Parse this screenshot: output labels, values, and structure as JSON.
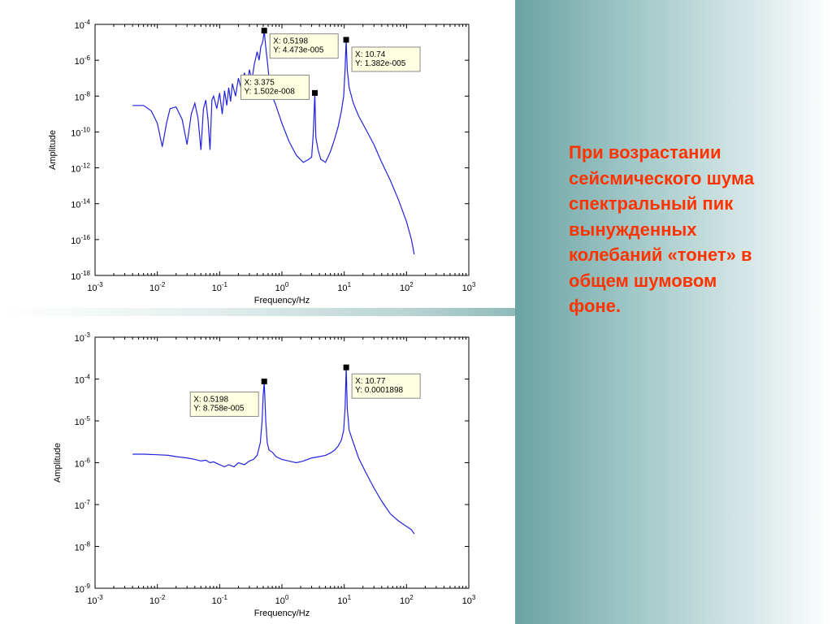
{
  "slide_text": [
    "При возрастании",
    "сейсмического шума",
    "спектральный пик",
    "вынужденных",
    "колебаний «тонет» в",
    "общем шумовом",
    "фоне."
  ],
  "colors": {
    "series": "#2222dd",
    "slide_text": "#ff3300",
    "panel": "#6aa3a3"
  },
  "chart_data": [
    {
      "type": "line",
      "xscale": "log",
      "yscale": "log",
      "xlim": [
        0.001,
        1000
      ],
      "ylim": [
        1e-18,
        0.0001
      ],
      "xlabel": "Frequency/Hz",
      "ylabel": "Amplitude",
      "x_ticks": [
        -3,
        -2,
        -1,
        0,
        1,
        2,
        3
      ],
      "y_ticks": [
        -4,
        -6,
        -8,
        -10,
        -12,
        -14,
        -16,
        -18
      ],
      "series": [
        {
          "x": [
            0.004,
            0.006,
            0.008,
            0.01,
            0.012,
            0.014,
            0.016,
            0.02,
            0.025,
            0.03,
            0.035,
            0.04,
            0.045,
            0.05,
            0.055,
            0.06,
            0.065,
            0.07,
            0.075,
            0.08,
            0.09,
            0.1,
            0.11,
            0.12,
            0.13,
            0.14,
            0.15,
            0.16,
            0.18,
            0.2,
            0.22,
            0.25,
            0.28,
            0.3,
            0.33,
            0.36,
            0.4,
            0.43,
            0.46,
            0.48,
            0.5,
            0.5198,
            0.54,
            0.56,
            0.58,
            0.62,
            0.7,
            0.8,
            1.0,
            1.3,
            1.7,
            2.2,
            2.7,
            3.0,
            3.2,
            3.375,
            3.5,
            3.8,
            4.2,
            5.0,
            6.0,
            7.0,
            8.0,
            9.0,
            9.8,
            10.3,
            10.74,
            11.2,
            12.0,
            14.0,
            17.0,
            22.0,
            30.0,
            40.0,
            55.0,
            75.0,
            100.0,
            120.0,
            133.0
          ],
          "y": [
            3e-09,
            3e-09,
            1.5e-09,
            3e-10,
            1.5e-11,
            3e-10,
            2e-09,
            2.5e-09,
            5e-10,
            2e-11,
            1e-09,
            4e-09,
            6e-10,
            1e-11,
            2e-09,
            6e-09,
            5e-10,
            1e-11,
            6e-09,
            1e-08,
            2e-09,
            1.5e-08,
            1e-09,
            2e-08,
            3e-09,
            3e-08,
            5e-09,
            5e-08,
            1e-08,
            1e-07,
            3e-08,
            2e-07,
            5e-08,
            3e-07,
            8e-08,
            6e-07,
            3e-06,
            1e-06,
            6e-06,
            8e-06,
            1.5e-05,
            4.473e-05,
            1e-05,
            3e-06,
            1e-06,
            1e-07,
            1e-08,
            3e-09,
            3e-10,
            3e-11,
            5e-12,
            2e-12,
            3e-12,
            4e-12,
            1e-10,
            1.502e-08,
            5e-11,
            1e-11,
            3e-12,
            2e-12,
            8e-12,
            4e-11,
            2e-10,
            1.5e-09,
            1e-08,
            3e-07,
            1.382e-05,
            3e-07,
            3e-08,
            4e-09,
            8e-10,
            1.5e-10,
            2e-11,
            2e-12,
            2e-13,
            1.5e-14,
            1e-15,
            1e-16,
            1.5e-17
          ]
        }
      ],
      "data_tips": [
        {
          "x": 0.5198,
          "y": 4.473e-05,
          "lines": [
            "X: 0.5198",
            "Y: 4.473e-005"
          ],
          "side": "right",
          "dy": 0
        },
        {
          "x": 3.375,
          "y": 1.502e-08,
          "lines": [
            "X: 3.375",
            "Y: 1.502e-008"
          ],
          "side": "left",
          "dy": -26
        },
        {
          "x": 10.74,
          "y": 1.382e-05,
          "lines": [
            "X: 10.74",
            "Y: 1.382e-005"
          ],
          "side": "right",
          "dy": 5
        }
      ]
    },
    {
      "type": "line",
      "xscale": "log",
      "yscale": "log",
      "xlim": [
        0.001,
        1000
      ],
      "ylim": [
        1e-09,
        0.001
      ],
      "xlabel": "Frequency/Hz",
      "ylabel": "Amplitude",
      "x_ticks": [
        -3,
        -2,
        -1,
        0,
        1,
        2,
        3
      ],
      "y_ticks": [
        -3,
        -4,
        -5,
        -6,
        -7,
        -8,
        -9
      ],
      "series": [
        {
          "x": [
            0.004,
            0.006,
            0.01,
            0.015,
            0.02,
            0.03,
            0.04,
            0.05,
            0.06,
            0.07,
            0.08,
            0.1,
            0.12,
            0.14,
            0.17,
            0.2,
            0.25,
            0.3,
            0.35,
            0.4,
            0.45,
            0.48,
            0.5,
            0.5198,
            0.53,
            0.55,
            0.58,
            0.62,
            0.7,
            0.8,
            1.0,
            1.3,
            1.7,
            2.2,
            3.0,
            4.0,
            5.0,
            6.0,
            7.0,
            8.0,
            9.0,
            9.8,
            10.3,
            10.77,
            11.2,
            12.0,
            14.0,
            17.0,
            22.0,
            30.0,
            40.0,
            55.0,
            75.0,
            100.0,
            120.0,
            133.0
          ],
          "y": [
            1.6e-06,
            1.6e-06,
            1.55e-06,
            1.5e-06,
            1.4e-06,
            1.3e-06,
            1.2e-06,
            1.1e-06,
            1.15e-06,
            1e-06,
            1.05e-06,
            9e-07,
            8e-07,
            9e-07,
            8e-07,
            1e-06,
            9e-07,
            1.1e-06,
            1.2e-06,
            1.5e-06,
            3e-06,
            1e-05,
            4e-05,
            8.758e-05,
            4e-05,
            1e-05,
            3e-06,
            2e-06,
            1.8e-06,
            1.4e-06,
            1.2e-06,
            1.1e-06,
            1e-06,
            1.1e-06,
            1.3e-06,
            1.4e-06,
            1.5e-06,
            1.7e-06,
            2e-06,
            2.5e-06,
            3.5e-06,
            6e-06,
            2e-05,
            0.0001898,
            2e-05,
            6e-06,
            3e-06,
            1.3e-06,
            6e-07,
            2.5e-07,
            1.2e-07,
            6e-08,
            4e-08,
            3e-08,
            2.5e-08,
            2e-08
          ]
        }
      ],
      "data_tips": [
        {
          "x": 0.5198,
          "y": 8.758e-05,
          "lines": [
            "X: 0.5198",
            "Y: 8.758e-005"
          ],
          "side": "left",
          "dy": 9
        },
        {
          "x": 10.77,
          "y": 0.0001898,
          "lines": [
            "X: 10.77",
            "Y: 0.0001898"
          ],
          "side": "right",
          "dy": 4
        }
      ]
    }
  ]
}
